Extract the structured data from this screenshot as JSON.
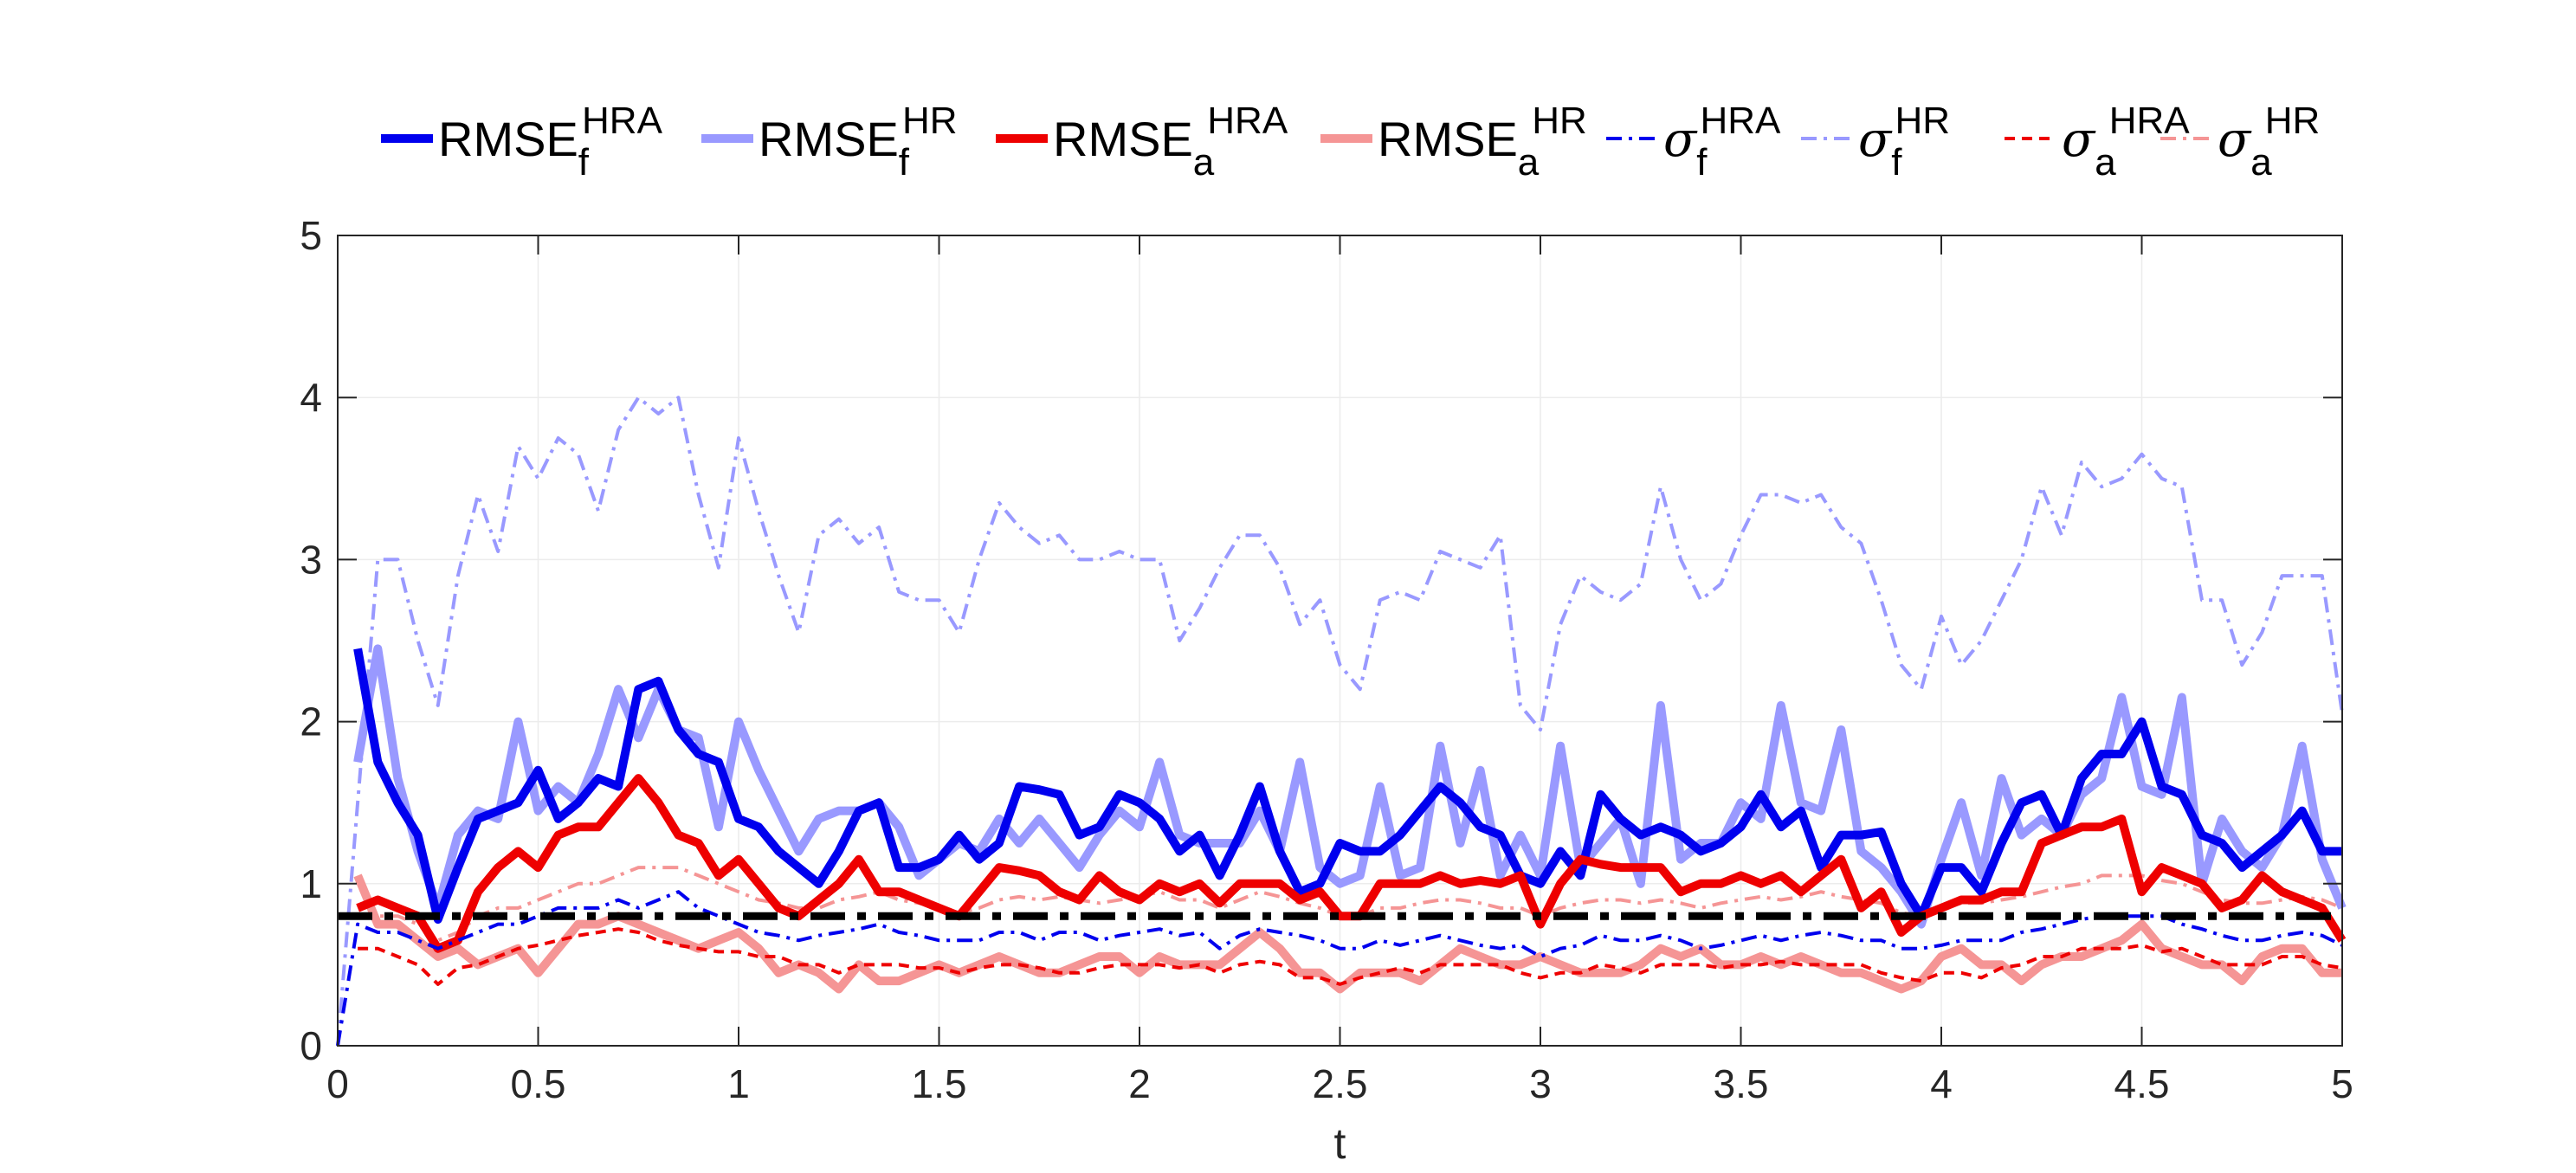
{
  "chart_data": {
    "type": "line",
    "xlabel": "t",
    "ylabel": "",
    "xlim": [
      0,
      5
    ],
    "ylim": [
      0,
      5
    ],
    "xticks": [
      "0",
      "0.5",
      "1",
      "1.5",
      "2",
      "2.5",
      "3",
      "3.5",
      "4",
      "4.5",
      "5"
    ],
    "yticks": [
      "0",
      "1",
      "2",
      "3",
      "4",
      "5"
    ],
    "grid": true,
    "legend_position": "top",
    "reference_line": {
      "y": 0.8,
      "color": "#000000",
      "style": "dash-dot"
    },
    "x": [
      0.05,
      0.1,
      0.15,
      0.2,
      0.25,
      0.3,
      0.35,
      0.4,
      0.45,
      0.5,
      0.55,
      0.6,
      0.65,
      0.7,
      0.75,
      0.8,
      0.85,
      0.9,
      0.95,
      1.0,
      1.05,
      1.1,
      1.15,
      1.2,
      1.25,
      1.3,
      1.35,
      1.4,
      1.45,
      1.5,
      1.55,
      1.6,
      1.65,
      1.7,
      1.75,
      1.8,
      1.85,
      1.9,
      1.95,
      2.0,
      2.05,
      2.1,
      2.15,
      2.2,
      2.25,
      2.3,
      2.35,
      2.4,
      2.45,
      2.5,
      2.55,
      2.6,
      2.65,
      2.7,
      2.75,
      2.8,
      2.85,
      2.9,
      2.95,
      3.0,
      3.05,
      3.1,
      3.15,
      3.2,
      3.25,
      3.3,
      3.35,
      3.4,
      3.45,
      3.5,
      3.55,
      3.6,
      3.65,
      3.7,
      3.75,
      3.8,
      3.85,
      3.9,
      3.95,
      4.0,
      4.05,
      4.1,
      4.15,
      4.2,
      4.25,
      4.3,
      4.35,
      4.4,
      4.45,
      4.5,
      4.55,
      4.6,
      4.65,
      4.7,
      4.75,
      4.8,
      4.85,
      4.9,
      4.95,
      5.0
    ],
    "series": [
      {
        "name": "RMSE_f^HRA",
        "label_main": "RMSE",
        "label_sub": "f",
        "label_sup": "HRA",
        "sigma": false,
        "color": "#0000ee",
        "width": 10,
        "dash": "",
        "values": [
          2.45,
          1.75,
          1.5,
          1.3,
          0.78,
          1.1,
          1.4,
          1.45,
          1.5,
          1.7,
          1.4,
          1.5,
          1.65,
          1.6,
          2.2,
          2.25,
          1.95,
          1.8,
          1.75,
          1.4,
          1.35,
          1.2,
          1.1,
          1.0,
          1.2,
          1.45,
          1.5,
          1.1,
          1.1,
          1.15,
          1.3,
          1.15,
          1.25,
          1.6,
          1.58,
          1.55,
          1.3,
          1.35,
          1.55,
          1.5,
          1.4,
          1.2,
          1.3,
          1.05,
          1.3,
          1.6,
          1.2,
          0.95,
          1.0,
          1.25,
          1.2,
          1.2,
          1.3,
          1.45,
          1.6,
          1.5,
          1.35,
          1.3,
          1.05,
          1.0,
          1.2,
          1.05,
          1.55,
          1.4,
          1.3,
          1.35,
          1.3,
          1.2,
          1.25,
          1.35,
          1.55,
          1.35,
          1.45,
          1.1,
          1.3,
          1.3,
          1.32,
          1.0,
          0.8,
          1.1,
          1.1,
          0.95,
          1.25,
          1.5,
          1.55,
          1.3,
          1.65,
          1.8,
          1.8,
          2.0,
          1.6,
          1.55,
          1.3,
          1.25,
          1.1,
          1.2,
          1.3,
          1.45,
          1.2,
          1.2
        ]
      },
      {
        "name": "RMSE_f^HR",
        "label_main": "RMSE",
        "label_sub": "f",
        "label_sup": "HR",
        "sigma": false,
        "color": "#9999ff",
        "width": 10,
        "dash": "",
        "values": [
          1.75,
          2.45,
          1.65,
          1.2,
          0.85,
          1.3,
          1.45,
          1.4,
          2.0,
          1.45,
          1.6,
          1.5,
          1.8,
          2.2,
          1.9,
          2.2,
          1.95,
          1.9,
          1.35,
          2.0,
          1.7,
          1.45,
          1.2,
          1.4,
          1.45,
          1.45,
          1.5,
          1.35,
          1.05,
          1.15,
          1.25,
          1.2,
          1.4,
          1.25,
          1.4,
          1.25,
          1.1,
          1.3,
          1.45,
          1.35,
          1.75,
          1.3,
          1.25,
          1.25,
          1.25,
          1.45,
          1.2,
          1.75,
          1.1,
          1.0,
          1.05,
          1.6,
          1.05,
          1.1,
          1.85,
          1.25,
          1.7,
          1.05,
          1.3,
          1.05,
          1.85,
          1.1,
          1.25,
          1.4,
          1.0,
          2.1,
          1.15,
          1.25,
          1.25,
          1.5,
          1.4,
          2.1,
          1.5,
          1.45,
          1.95,
          1.2,
          1.1,
          0.95,
          0.75,
          1.15,
          1.5,
          1.05,
          1.65,
          1.3,
          1.4,
          1.3,
          1.55,
          1.65,
          2.15,
          1.6,
          1.55,
          2.15,
          1.0,
          1.4,
          1.2,
          1.1,
          1.3,
          1.85,
          1.15,
          0.85
        ]
      },
      {
        "name": "RMSE_a^HRA",
        "label_main": "RMSE",
        "label_sub": "a",
        "label_sup": "HRA",
        "sigma": false,
        "color": "#ee0000",
        "width": 10,
        "dash": "",
        "values": [
          0.85,
          0.9,
          0.85,
          0.8,
          0.6,
          0.65,
          0.95,
          1.1,
          1.2,
          1.1,
          1.3,
          1.35,
          1.35,
          1.5,
          1.65,
          1.5,
          1.3,
          1.25,
          1.05,
          1.15,
          1.0,
          0.85,
          0.8,
          0.9,
          1.0,
          1.15,
          0.95,
          0.95,
          0.9,
          0.85,
          0.8,
          0.95,
          1.1,
          1.08,
          1.05,
          0.95,
          0.9,
          1.05,
          0.95,
          0.9,
          1.0,
          0.95,
          1.0,
          0.88,
          1.0,
          1.0,
          1.0,
          0.9,
          0.95,
          0.8,
          0.8,
          1.0,
          1.0,
          1.0,
          1.05,
          1.0,
          1.02,
          1.0,
          1.05,
          0.75,
          1.0,
          1.15,
          1.12,
          1.1,
          1.1,
          1.1,
          0.95,
          1.0,
          1.0,
          1.05,
          1.0,
          1.05,
          0.95,
          1.05,
          1.15,
          0.85,
          0.95,
          0.7,
          0.8,
          0.85,
          0.9,
          0.9,
          0.95,
          0.95,
          1.25,
          1.3,
          1.35,
          1.35,
          1.4,
          0.95,
          1.1,
          1.05,
          1.0,
          0.85,
          0.9,
          1.05,
          0.95,
          0.9,
          0.85,
          0.65
        ]
      },
      {
        "name": "RMSE_a^HR",
        "label_main": "RMSE",
        "label_sub": "a",
        "label_sup": "HR",
        "sigma": false,
        "color": "#f59595",
        "width": 10,
        "dash": "",
        "values": [
          1.05,
          0.75,
          0.75,
          0.65,
          0.55,
          0.6,
          0.5,
          0.55,
          0.6,
          0.45,
          0.6,
          0.75,
          0.75,
          0.8,
          0.75,
          0.7,
          0.65,
          0.6,
          0.65,
          0.7,
          0.6,
          0.45,
          0.5,
          0.45,
          0.35,
          0.5,
          0.4,
          0.4,
          0.45,
          0.5,
          0.45,
          0.5,
          0.55,
          0.5,
          0.45,
          0.45,
          0.5,
          0.55,
          0.55,
          0.45,
          0.55,
          0.5,
          0.5,
          0.5,
          0.6,
          0.7,
          0.6,
          0.45,
          0.45,
          0.35,
          0.45,
          0.45,
          0.45,
          0.4,
          0.5,
          0.6,
          0.55,
          0.5,
          0.5,
          0.55,
          0.5,
          0.45,
          0.45,
          0.45,
          0.5,
          0.6,
          0.55,
          0.6,
          0.5,
          0.5,
          0.55,
          0.5,
          0.55,
          0.5,
          0.45,
          0.45,
          0.4,
          0.35,
          0.4,
          0.55,
          0.6,
          0.5,
          0.5,
          0.4,
          0.5,
          0.55,
          0.55,
          0.6,
          0.65,
          0.75,
          0.6,
          0.55,
          0.5,
          0.5,
          0.4,
          0.55,
          0.6,
          0.6,
          0.45,
          0.45
        ]
      },
      {
        "name": "sigma_f^HRA",
        "label_main": "σ",
        "label_sub": "f",
        "label_sup": "HRA",
        "sigma": true,
        "color": "#0000ee",
        "width": 4,
        "dash": "18,8,4,8",
        "values": [
          0.75,
          0.7,
          0.7,
          0.65,
          0.6,
          0.65,
          0.7,
          0.75,
          0.75,
          0.8,
          0.85,
          0.85,
          0.85,
          0.9,
          0.85,
          0.9,
          0.95,
          0.85,
          0.8,
          0.75,
          0.7,
          0.68,
          0.65,
          0.68,
          0.7,
          0.72,
          0.75,
          0.7,
          0.68,
          0.65,
          0.65,
          0.65,
          0.7,
          0.7,
          0.65,
          0.7,
          0.7,
          0.65,
          0.68,
          0.7,
          0.72,
          0.68,
          0.7,
          0.6,
          0.68,
          0.72,
          0.7,
          0.68,
          0.65,
          0.6,
          0.6,
          0.65,
          0.62,
          0.65,
          0.68,
          0.65,
          0.62,
          0.6,
          0.62,
          0.55,
          0.6,
          0.62,
          0.68,
          0.65,
          0.65,
          0.68,
          0.65,
          0.6,
          0.62,
          0.65,
          0.68,
          0.65,
          0.68,
          0.7,
          0.68,
          0.65,
          0.65,
          0.6,
          0.6,
          0.62,
          0.65,
          0.65,
          0.65,
          0.7,
          0.72,
          0.75,
          0.78,
          0.8,
          0.8,
          0.8,
          0.8,
          0.75,
          0.72,
          0.68,
          0.65,
          0.65,
          0.68,
          0.7,
          0.68,
          0.62
        ]
      },
      {
        "name": "sigma_f^HR",
        "label_main": "σ",
        "label_sub": "f",
        "label_sup": "HR",
        "sigma": true,
        "color": "#9999ff",
        "width": 4,
        "dash": "18,8,4,8",
        "values": [
          1.5,
          3.0,
          3.0,
          2.5,
          2.1,
          2.9,
          3.4,
          3.05,
          3.7,
          3.5,
          3.75,
          3.65,
          3.3,
          3.8,
          4.0,
          3.9,
          4.0,
          3.4,
          2.95,
          3.75,
          3.3,
          2.9,
          2.55,
          3.15,
          3.25,
          3.1,
          3.2,
          2.8,
          2.75,
          2.75,
          2.55,
          3.0,
          3.35,
          3.2,
          3.1,
          3.15,
          3.0,
          3.0,
          3.05,
          3.0,
          3.0,
          2.5,
          2.7,
          2.95,
          3.15,
          3.15,
          2.95,
          2.6,
          2.75,
          2.35,
          2.2,
          2.75,
          2.8,
          2.75,
          3.05,
          3.0,
          2.95,
          3.15,
          2.1,
          1.95,
          2.6,
          2.9,
          2.8,
          2.75,
          2.85,
          3.45,
          3.0,
          2.75,
          2.85,
          3.15,
          3.4,
          3.4,
          3.35,
          3.4,
          3.2,
          3.1,
          2.75,
          2.35,
          2.2,
          2.65,
          2.35,
          2.5,
          2.75,
          3.0,
          3.45,
          3.15,
          3.6,
          3.45,
          3.5,
          3.65,
          3.5,
          3.45,
          2.75,
          2.75,
          2.35,
          2.55,
          2.9,
          2.9,
          2.9,
          2.05
        ]
      },
      {
        "name": "sigma_a^HRA",
        "label_main": "σ",
        "label_sub": "a",
        "label_sup": "HRA",
        "sigma": true,
        "color": "#ee0000",
        "width": 4,
        "dash": "12,8",
        "values": [
          0.6,
          0.6,
          0.55,
          0.5,
          0.38,
          0.48,
          0.5,
          0.55,
          0.6,
          0.62,
          0.65,
          0.68,
          0.7,
          0.72,
          0.7,
          0.65,
          0.62,
          0.6,
          0.58,
          0.58,
          0.55,
          0.55,
          0.5,
          0.5,
          0.45,
          0.5,
          0.5,
          0.5,
          0.48,
          0.48,
          0.45,
          0.48,
          0.5,
          0.5,
          0.48,
          0.45,
          0.45,
          0.48,
          0.5,
          0.5,
          0.5,
          0.48,
          0.5,
          0.45,
          0.5,
          0.52,
          0.5,
          0.42,
          0.42,
          0.38,
          0.42,
          0.45,
          0.48,
          0.45,
          0.5,
          0.5,
          0.5,
          0.5,
          0.45,
          0.42,
          0.45,
          0.45,
          0.5,
          0.48,
          0.45,
          0.5,
          0.5,
          0.5,
          0.48,
          0.5,
          0.5,
          0.52,
          0.5,
          0.5,
          0.5,
          0.5,
          0.45,
          0.42,
          0.4,
          0.45,
          0.45,
          0.42,
          0.48,
          0.5,
          0.55,
          0.55,
          0.6,
          0.6,
          0.6,
          0.62,
          0.58,
          0.6,
          0.55,
          0.5,
          0.5,
          0.5,
          0.55,
          0.55,
          0.5,
          0.48
        ]
      },
      {
        "name": "sigma_a^HR",
        "label_main": "σ",
        "label_sub": "a",
        "label_sup": "HR",
        "sigma": true,
        "color": "#f59595",
        "width": 4,
        "dash": "18,8,4,8",
        "values": [
          0.8,
          0.8,
          0.8,
          0.75,
          0.65,
          0.7,
          0.8,
          0.85,
          0.85,
          0.9,
          0.95,
          1.0,
          1.0,
          1.05,
          1.1,
          1.1,
          1.1,
          1.05,
          1.0,
          0.95,
          0.9,
          0.88,
          0.85,
          0.85,
          0.9,
          0.92,
          0.95,
          0.9,
          0.88,
          0.85,
          0.82,
          0.85,
          0.9,
          0.92,
          0.9,
          0.92,
          0.9,
          0.88,
          0.9,
          0.92,
          0.95,
          0.9,
          0.9,
          0.85,
          0.9,
          0.95,
          0.92,
          0.88,
          0.85,
          0.8,
          0.8,
          0.85,
          0.85,
          0.88,
          0.9,
          0.9,
          0.88,
          0.85,
          0.85,
          0.8,
          0.85,
          0.88,
          0.9,
          0.9,
          0.88,
          0.9,
          0.88,
          0.85,
          0.88,
          0.9,
          0.92,
          0.9,
          0.92,
          0.95,
          0.92,
          0.9,
          0.88,
          0.82,
          0.8,
          0.85,
          0.88,
          0.88,
          0.9,
          0.92,
          0.95,
          0.98,
          1.0,
          1.05,
          1.05,
          1.05,
          1.02,
          1.0,
          0.95,
          0.9,
          0.88,
          0.88,
          0.9,
          0.92,
          0.9,
          0.85
        ]
      }
    ]
  }
}
